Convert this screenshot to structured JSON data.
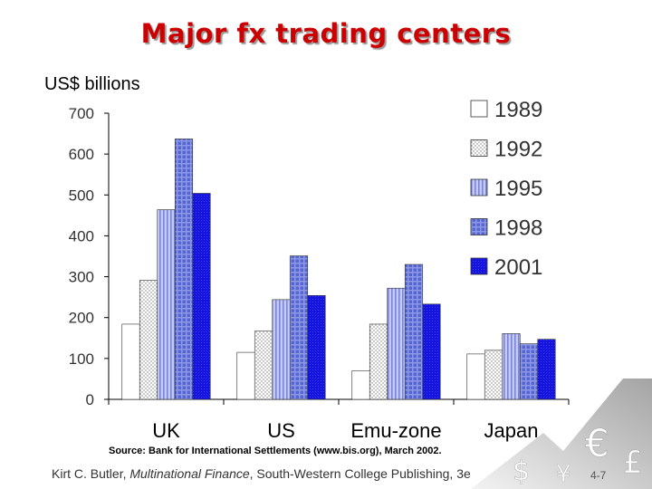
{
  "slide": {
    "title": "Major fx trading centers",
    "source": "Source: Bank for International Settlements (www.bis.org), March 2002.",
    "citation_author": "Kirt C. Butler, ",
    "citation_book": "Multinational Finance",
    "citation_rest": ", South-Western College Publishing, 3e",
    "slide_number": "4-7",
    "decoration_icons": [
      "currency-arrow-icon",
      "yuan-sign-icon",
      "euro-sign-icon",
      "pound-sign-icon",
      "dollar-sign-icon"
    ]
  },
  "chart_data": {
    "type": "bar",
    "title": "",
    "ylabel": "US$ billions",
    "xlabel": "",
    "categories": [
      "UK",
      "US",
      "Emu-zone",
      "Japan"
    ],
    "ylim": [
      0,
      700
    ],
    "yticks": [
      0,
      100,
      200,
      300,
      400,
      500,
      600,
      700
    ],
    "grid": false,
    "legend_position": "top-right",
    "series": [
      {
        "name": "1989",
        "values": [
          184,
          115,
          70,
          111
        ],
        "color": "#ffffff",
        "pattern": "none"
      },
      {
        "name": "1992",
        "values": [
          291,
          167,
          184,
          120
        ],
        "color": "#ffffff",
        "pattern": "dotted"
      },
      {
        "name": "1995",
        "values": [
          464,
          244,
          272,
          161
        ],
        "color": "#b8bff0",
        "pattern": "vertical-stripes"
      },
      {
        "name": "1998",
        "values": [
          637,
          351,
          330,
          136
        ],
        "color": "#4d5cc8",
        "pattern": "grid"
      },
      {
        "name": "2001",
        "values": [
          504,
          254,
          233,
          147
        ],
        "color": "#1a1ae6",
        "pattern": "dense"
      }
    ]
  }
}
